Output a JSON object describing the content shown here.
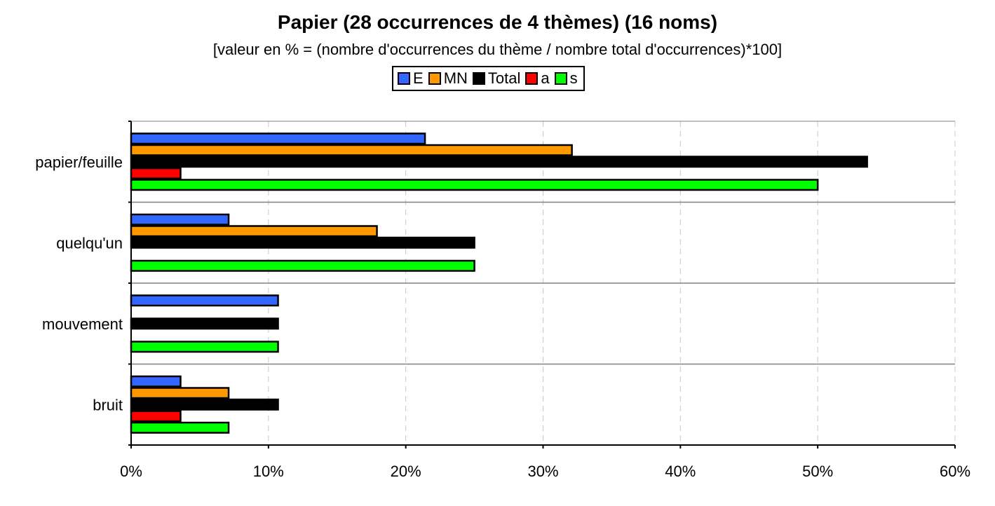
{
  "chart_data": {
    "type": "bar",
    "orientation": "horizontal",
    "title": "Papier (28 occurrences de 4 thèmes) (16 noms)",
    "subtitle": "[valeur en % = (nombre d'occurrences du thème / nombre total d'occurrences)*100]",
    "categories": [
      "papier/feuille",
      "quelqu'un",
      "mouvement",
      "bruit"
    ],
    "series": [
      {
        "name": "E",
        "color": "#3366ff",
        "values": [
          21.4,
          7.1,
          10.7,
          3.6
        ]
      },
      {
        "name": "MN",
        "color": "#ff9900",
        "values": [
          32.1,
          17.9,
          0,
          7.1
        ]
      },
      {
        "name": "Total",
        "color": "#000000",
        "values": [
          53.6,
          25.0,
          10.7,
          10.7
        ]
      },
      {
        "name": "a",
        "color": "#ff0000",
        "values": [
          3.6,
          0,
          0,
          3.6
        ]
      },
      {
        "name": "s",
        "color": "#00ff00",
        "values": [
          50.0,
          25.0,
          10.7,
          7.1
        ]
      }
    ],
    "xlim": [
      0,
      60
    ],
    "xticks": [
      "0%",
      "10%",
      "20%",
      "30%",
      "40%",
      "50%",
      "60%"
    ],
    "grid": "vertical dashed",
    "legend_position": "top-center"
  }
}
